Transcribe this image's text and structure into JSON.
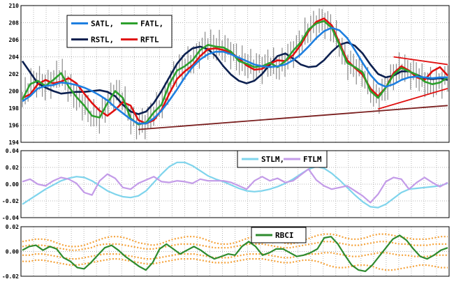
{
  "chart_data": [
    {
      "id": "price",
      "type": "line",
      "ylim": [
        194,
        210
      ],
      "yticks": [
        "194",
        "196",
        "198",
        "200",
        "202",
        "204",
        "206",
        "208",
        "210"
      ],
      "grid": true,
      "legend_placement": "top-left",
      "series": [
        {
          "name": "SATL,",
          "color": "#1e7fe0",
          "values": [
            198.8,
            199.4,
            200.3,
            200.6,
            200.7,
            201,
            200.9,
            200.7,
            200.4,
            200,
            199.5,
            198.9,
            198.1,
            197.4,
            196.7,
            196.2,
            196.2,
            196.8,
            197.7,
            198.9,
            200.2,
            201.6,
            202.8,
            203.7,
            204.3,
            204.6,
            204.6,
            204.3,
            203.9,
            203.5,
            203.1,
            202.9,
            202.8,
            202.9,
            203.1,
            203.6,
            204.3,
            205.2,
            206.2,
            207,
            207.4,
            207.1,
            206.2,
            204.8,
            203.3,
            201.9,
            200.9,
            200.5,
            200.8,
            201.3,
            201.6,
            201.7,
            201.6,
            201.5,
            201.6,
            201.6
          ]
        },
        {
          "name": "FATL,",
          "color": "#2ca02c",
          "values": [
            199,
            200.8,
            201.2,
            200.6,
            201.3,
            202.1,
            200.5,
            199.3,
            198.3,
            197.1,
            196.9,
            198.6,
            200,
            199.2,
            196.8,
            196.1,
            196.3,
            197.5,
            198.4,
            200.8,
            202.4,
            202.9,
            203.6,
            204.8,
            205.4,
            205.2,
            205.1,
            204.6,
            203.5,
            203.2,
            202.8,
            202.9,
            203.3,
            202.8,
            203.5,
            204.7,
            205.7,
            207.2,
            207.9,
            208.2,
            207.4,
            205.4,
            203.3,
            202.8,
            202.2,
            200,
            199.2,
            200.4,
            201.9,
            202.7,
            202.3,
            201.9,
            201.1,
            200.8,
            201,
            201.6
          ]
        },
        {
          "name": "RSTL,",
          "color": "#0c2050",
          "values": [
            203.5,
            202.2,
            200.9,
            200.4,
            200,
            199.7,
            199.8,
            199.9,
            199.9,
            200,
            200.1,
            199.9,
            199.4,
            198.4,
            197.6,
            197.3,
            197.6,
            198.6,
            200,
            201.6,
            203.2,
            204.3,
            205,
            205.2,
            204.9,
            204.1,
            202.9,
            201.9,
            201.2,
            200.9,
            201.2,
            202,
            203.1,
            204.1,
            204.4,
            203.8,
            203.1,
            202.8,
            202.9,
            203.6,
            204.6,
            205.4,
            205.7,
            205.3,
            204.4,
            203.1,
            202,
            201.6,
            201.8,
            202.3,
            202.3,
            201.9,
            201.5,
            201.4,
            201.5,
            201.3
          ]
        },
        {
          "name": "RFTL",
          "color": "#e01010",
          "values": [
            199.2,
            199.6,
            200.8,
            201.3,
            200.9,
            201.1,
            201.5,
            200.9,
            199.7,
            198.6,
            197.7,
            197.1,
            197.8,
            198.7,
            198.3,
            196.6,
            196.2,
            196.6,
            197.8,
            199.7,
            201.4,
            202.3,
            203,
            204.1,
            204.9,
            205,
            204.8,
            204.5,
            203.8,
            203,
            202.5,
            202.6,
            203.2,
            203.6,
            203.5,
            204.2,
            205.4,
            207,
            208.1,
            208.5,
            207.7,
            205.6,
            203.6,
            202.7,
            201.9,
            200.3,
            199.4,
            200.4,
            202.1,
            202.9,
            202.4,
            201.6,
            201.3,
            202.3,
            202.8,
            201.8
          ]
        }
      ],
      "trendlines": [
        {
          "color": "#7a1f1f",
          "x": [
            15,
            55
          ],
          "y": [
            195.5,
            198.3
          ]
        },
        {
          "color": "#e01010",
          "x": [
            46,
            55
          ],
          "y": [
            197.9,
            200.3
          ]
        },
        {
          "color": "#e01010",
          "x": [
            48,
            55
          ],
          "y": [
            204,
            203.1
          ]
        }
      ]
    },
    {
      "id": "stlm-ftlm",
      "type": "line",
      "ylim": [
        -0.04,
        0.04
      ],
      "yticks": [
        "-0.04",
        "-0.02",
        "0.00",
        "0.02",
        "0.04"
      ],
      "grid": true,
      "legend_placement": "top-right",
      "series": [
        {
          "name": "STLM,",
          "color": "#7fd4ec",
          "values": [
            -0.024,
            -0.018,
            -0.012,
            -0.006,
            -0.001,
            0.004,
            0.007,
            0.009,
            0.008,
            0.004,
            -0.002,
            -0.008,
            -0.012,
            -0.015,
            -0.016,
            -0.014,
            -0.008,
            0.002,
            0.012,
            0.021,
            0.026,
            0.026,
            0.022,
            0.016,
            0.01,
            0.006,
            0.003,
            -0.001,
            -0.005,
            -0.008,
            -0.009,
            -0.008,
            -0.006,
            -0.003,
            0.001,
            0.006,
            0.012,
            0.018,
            0.021,
            0.019,
            0.013,
            0.005,
            -0.004,
            -0.013,
            -0.021,
            -0.027,
            -0.028,
            -0.024,
            -0.017,
            -0.01,
            -0.006,
            -0.005,
            -0.004,
            -0.003,
            -0.002,
            0.001
          ]
        },
        {
          "name": "FTLM",
          "color": "#c39be8",
          "values": [
            0.003,
            0.006,
            0,
            -0.002,
            0.004,
            0.008,
            0.006,
            0.001,
            -0.01,
            -0.013,
            0.004,
            0.012,
            0.007,
            -0.004,
            -0.006,
            0.001,
            0.005,
            0.009,
            0.003,
            0.002,
            0.004,
            0.003,
            0.001,
            0.006,
            0.004,
            0.004,
            0.004,
            0.002,
            -0.002,
            -0.006,
            0.004,
            0.009,
            0.004,
            0.007,
            0.002,
            0.004,
            0.011,
            0.018,
            0.005,
            -0.002,
            -0.006,
            -0.004,
            -0.002,
            -0.008,
            -0.014,
            -0.022,
            -0.012,
            0.003,
            0.008,
            0.006,
            -0.006,
            0.002,
            0.008,
            0.002,
            -0.003,
            0.002
          ]
        }
      ]
    },
    {
      "id": "rbci",
      "type": "line",
      "ylim": [
        -0.02,
        0.02
      ],
      "yticks": [
        "-0.02",
        "0.00",
        "0.02"
      ],
      "grid": true,
      "legend_placement": "top-center",
      "series": [
        {
          "name": "RBCI",
          "color": "#2e8b2e",
          "values": [
            0.001,
            0.004,
            0.005,
            0.001,
            0.004,
            0.002,
            -0.005,
            -0.008,
            -0.013,
            -0.014,
            -0.009,
            -0.003,
            0.003,
            0.005,
            0.001,
            -0.004,
            -0.008,
            -0.012,
            -0.015,
            -0.009,
            0.002,
            0.006,
            0.002,
            -0.002,
            0.001,
            0.004,
            0.001,
            -0.003,
            -0.006,
            -0.004,
            -0.002,
            -0.003,
            0.004,
            0.008,
            0.004,
            -0.003,
            -0.001,
            0.002,
            0.002,
            -0.001,
            -0.004,
            -0.003,
            -0.001,
            0.002,
            0.011,
            0.012,
            0.006,
            -0.003,
            -0.011,
            -0.015,
            -0.016,
            -0.011,
            -0.004,
            0.003,
            0.01,
            0.013,
            0.009,
            0.002,
            -0.004,
            -0.006,
            -0.003,
            0.001,
            0.003
          ]
        }
      ],
      "bands": [
        {
          "color": "#f5a23a",
          "values": [
            0.008,
            0.009,
            0.01,
            0.01,
            0.009,
            0.007,
            0.005,
            0.004,
            0.004,
            0.005,
            0.007,
            0.009,
            0.011,
            0.012,
            0.012,
            0.011,
            0.009,
            0.007,
            0.006,
            0.005,
            0.006,
            0.008,
            0.01,
            0.011,
            0.012,
            0.012,
            0.011,
            0.009,
            0.007,
            0.006,
            0.006,
            0.007,
            0.009,
            0.011,
            0.012,
            0.012,
            0.011,
            0.009,
            0.007,
            0.006,
            0.007,
            0.009,
            0.011,
            0.013,
            0.014,
            0.014,
            0.013,
            0.011,
            0.01,
            0.01,
            0.011,
            0.013,
            0.014,
            0.014,
            0.013,
            0.012,
            0.011,
            0.01,
            0.01,
            0.01,
            0.011,
            0.012,
            0.012
          ]
        },
        {
          "color": "#f5a23a",
          "values": [
            0.004,
            0.005,
            0.005,
            0.005,
            0.004,
            0.003,
            0.002,
            0.001,
            0.001,
            0.002,
            0.003,
            0.005,
            0.006,
            0.006,
            0.006,
            0.005,
            0.004,
            0.003,
            0.002,
            0.002,
            0.003,
            0.004,
            0.005,
            0.006,
            0.006,
            0.006,
            0.005,
            0.004,
            0.003,
            0.003,
            0.003,
            0.004,
            0.005,
            0.006,
            0.006,
            0.006,
            0.005,
            0.004,
            0.003,
            0.003,
            0.004,
            0.005,
            0.006,
            0.007,
            0.008,
            0.008,
            0.007,
            0.006,
            0.005,
            0.005,
            0.006,
            0.007,
            0.008,
            0.008,
            0.007,
            0.006,
            0.006,
            0.005,
            0.005,
            0.005,
            0.006,
            0.006,
            0.006
          ]
        },
        {
          "color": "#f5a23a",
          "values": [
            -0.003,
            -0.003,
            -0.002,
            -0.002,
            -0.003,
            -0.004,
            -0.005,
            -0.006,
            -0.006,
            -0.005,
            -0.004,
            -0.003,
            -0.002,
            -0.002,
            -0.002,
            -0.003,
            -0.004,
            -0.005,
            -0.006,
            -0.006,
            -0.005,
            -0.004,
            -0.003,
            -0.002,
            -0.002,
            -0.002,
            -0.003,
            -0.004,
            -0.005,
            -0.005,
            -0.005,
            -0.004,
            -0.003,
            -0.002,
            -0.002,
            -0.002,
            -0.003,
            -0.004,
            -0.005,
            -0.005,
            -0.004,
            -0.003,
            -0.002,
            -0.002,
            -0.001,
            -0.001,
            -0.002,
            -0.003,
            -0.004,
            -0.004,
            -0.003,
            -0.002,
            -0.001,
            -0.001,
            -0.002,
            -0.003,
            -0.003,
            -0.004,
            -0.004,
            -0.004,
            -0.003,
            -0.003,
            -0.003
          ]
        },
        {
          "color": "#f5a23a",
          "values": [
            -0.008,
            -0.008,
            -0.007,
            -0.007,
            -0.008,
            -0.009,
            -0.01,
            -0.011,
            -0.011,
            -0.01,
            -0.009,
            -0.008,
            -0.007,
            -0.006,
            -0.006,
            -0.007,
            -0.008,
            -0.009,
            -0.01,
            -0.01,
            -0.009,
            -0.008,
            -0.007,
            -0.006,
            -0.006,
            -0.006,
            -0.007,
            -0.008,
            -0.009,
            -0.009,
            -0.009,
            -0.008,
            -0.007,
            -0.006,
            -0.006,
            -0.006,
            -0.007,
            -0.008,
            -0.009,
            -0.009,
            -0.008,
            -0.007,
            -0.007,
            -0.008,
            -0.01,
            -0.012,
            -0.013,
            -0.013,
            -0.012,
            -0.011,
            -0.011,
            -0.012,
            -0.014,
            -0.015,
            -0.015,
            -0.014,
            -0.013,
            -0.012,
            -0.011,
            -0.011,
            -0.012,
            -0.013,
            -0.013
          ]
        }
      ]
    }
  ]
}
